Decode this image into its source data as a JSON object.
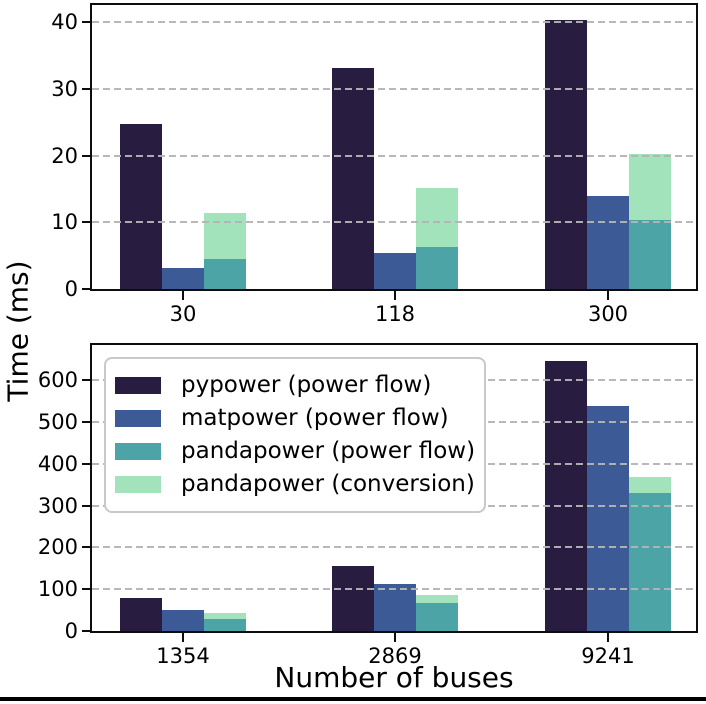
{
  "figure": {
    "ylabel": "Time (ms)",
    "xlabel": "Number of buses"
  },
  "palette": {
    "pypower": "#281d40",
    "matpower": "#3c5a96",
    "pandapower_pf": "#4da4a6",
    "pandapower_conv": "#a3e3bb",
    "grid": "#b4b4b4",
    "spine": "#0d0d0d"
  },
  "legend": {
    "entries": [
      {
        "label": "pypower (power flow)",
        "color": "pypower"
      },
      {
        "label": "matpower (power flow)",
        "color": "matpower"
      },
      {
        "label": "pandapower (power flow)",
        "color": "pandapower_pf"
      },
      {
        "label": "pandapower (conversion)",
        "color": "pandapower_conv"
      }
    ]
  },
  "chart_data": [
    {
      "type": "bar",
      "subplot": "top",
      "categories": [
        "30",
        "118",
        "300"
      ],
      "yticks": [
        0,
        10,
        20,
        30,
        40
      ],
      "ylim": [
        0,
        42.6
      ],
      "grid": true,
      "legend_position": "none",
      "series": [
        {
          "name": "pypower (power flow)",
          "color": "pypower",
          "slot": 0,
          "values": [
            24.8,
            33.1,
            40.4
          ]
        },
        {
          "name": "matpower (power flow)",
          "color": "matpower",
          "slot": 1,
          "values": [
            3.2,
            5.4,
            14.0
          ]
        },
        {
          "name": "pandapower (power flow)",
          "color": "pandapower_pf",
          "slot": 2,
          "values": [
            4.5,
            6.3,
            10.4
          ]
        },
        {
          "name": "pandapower (conversion)",
          "color": "pandapower_conv",
          "slot": 2,
          "stack_on": 2,
          "values": [
            6.9,
            8.9,
            9.9
          ]
        }
      ]
    },
    {
      "type": "bar",
      "subplot": "bottom",
      "categories": [
        "1354",
        "2869",
        "9241"
      ],
      "yticks": [
        0,
        100,
        200,
        300,
        400,
        500,
        600
      ],
      "ylim": [
        0,
        684
      ],
      "grid": true,
      "legend_position": "upper left",
      "series": [
        {
          "name": "pypower (power flow)",
          "color": "pypower",
          "slot": 0,
          "values": [
            80,
            155,
            645
          ]
        },
        {
          "name": "matpower (power flow)",
          "color": "matpower",
          "slot": 1,
          "values": [
            50,
            113,
            539
          ]
        },
        {
          "name": "pandapower (power flow)",
          "color": "pandapower_pf",
          "slot": 2,
          "values": [
            28,
            67,
            329
          ]
        },
        {
          "name": "pandapower (conversion)",
          "color": "pandapower_conv",
          "slot": 2,
          "stack_on": 2,
          "values": [
            14,
            18,
            39
          ]
        }
      ]
    }
  ]
}
